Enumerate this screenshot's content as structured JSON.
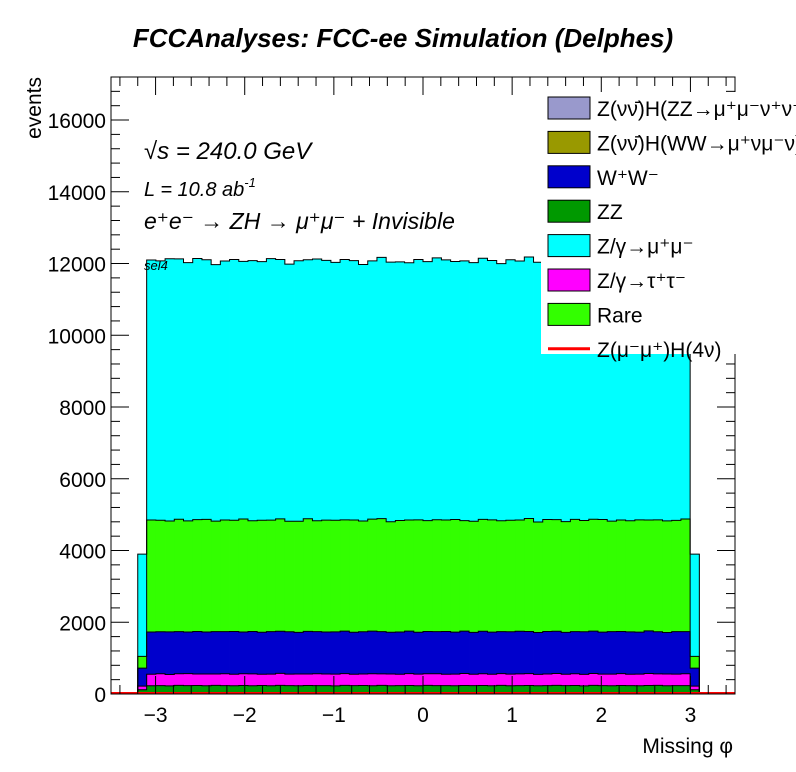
{
  "chart_data": {
    "type": "stacked-histogram",
    "title": "FCCAnalyses: FCC-ee Simulation (Delphes)",
    "xlabel": "Missing φ",
    "ylabel": "events",
    "xlim": [
      -3.5,
      3.5
    ],
    "ylim": [
      0,
      17200
    ],
    "x_ticks": [
      "−3",
      "−2",
      "−1",
      "0",
      "1",
      "2",
      "3"
    ],
    "y_ticks": [
      "0",
      "2000",
      "4000",
      "6000",
      "8000",
      "10000",
      "12000",
      "14000",
      "16000"
    ],
    "annotations": {
      "energy": "√s = 240.0 GeV",
      "lumi": "L = 10.8 ab",
      "lumi_exp": "-1",
      "process": "e⁺e⁻ → ZH → μ⁺μ⁻ + Invisible",
      "selection": "sel4"
    },
    "grid": false,
    "legend_position": "top-right",
    "bins": {
      "x_min": -3.2,
      "x_max": 3.2,
      "bulk_count": 60,
      "edge_bin_width": 0.1
    },
    "stack_order_bottom_to_top": [
      "ZZ",
      "Z/γ→τ⁺τ⁻",
      "W⁺W⁻",
      "Rare",
      "Z/γ→μ⁺μ⁻"
    ],
    "series": [
      {
        "name": "Z(νν̄)H(ZZ→μ⁺μ⁻ν⁺ν⁻)",
        "color": "#9999cc",
        "edge_value": 0,
        "values": [
          0
        ]
      },
      {
        "name": "Z(νν̄)H(WW→μ⁺νμ⁻ν)",
        "color": "#999900",
        "edge_value": 0,
        "values": [
          0
        ]
      },
      {
        "name": "W⁺W⁻",
        "color": "#0000cc",
        "edge_value": 500,
        "values": [
          1180,
          1170,
          1190,
          1175,
          1160,
          1185,
          1170,
          1180,
          1175,
          1190,
          1165,
          1180,
          1170,
          1185,
          1175,
          1180,
          1160,
          1190,
          1175,
          1170,
          1180,
          1185,
          1170,
          1175,
          1190,
          1180,
          1165,
          1175,
          1185,
          1170,
          1180,
          1175,
          1190,
          1170,
          1180,
          1165,
          1185,
          1175,
          1170,
          1180,
          1190,
          1175,
          1170,
          1185,
          1180,
          1165,
          1175,
          1190,
          1180,
          1170,
          1185,
          1175,
          1180,
          1170,
          1190,
          1175,
          1160,
          1185,
          1175,
          1180
        ]
      },
      {
        "name": "ZZ",
        "color": "#009900",
        "edge_value": 120,
        "values": [
          230,
          235,
          228,
          240,
          232,
          236,
          229,
          241,
          233,
          230,
          238,
          231,
          236,
          229,
          242,
          234,
          230,
          237,
          232,
          235,
          228,
          240,
          233,
          236,
          231,
          239,
          230,
          234,
          237,
          229,
          241,
          232,
          235,
          230,
          238,
          233,
          236,
          229,
          240,
          231,
          235,
          237,
          230,
          234,
          239,
          232,
          236,
          228,
          241,
          233,
          230,
          238,
          234,
          231,
          236,
          240,
          229,
          235,
          233,
          237
        ]
      },
      {
        "name": "Z/γ→μ⁺μ⁻",
        "color": "#00ffff",
        "edge_value": 2850,
        "values": [
          7250,
          7230,
          7310,
          7260,
          7200,
          7280,
          7240,
          7150,
          7220,
          7270,
          7180,
          7250,
          7210,
          7290,
          7230,
          7170,
          7260,
          7220,
          7300,
          7240,
          7190,
          7260,
          7230,
          7150,
          7200,
          7280,
          7240,
          7210,
          7170,
          7260,
          7220,
          7300,
          7250,
          7190,
          7240,
          7210,
          7280,
          7230,
          7170,
          7260,
          7220,
          7290,
          7240,
          7200,
          7250,
          7180,
          7260,
          7230,
          7210,
          7290,
          7240,
          7170,
          7250,
          7220,
          7280,
          7230,
          7200,
          7260,
          7240,
          7190
        ]
      },
      {
        "name": "Z/γ→τ⁺τ⁻",
        "color": "#ff00ff",
        "edge_value": 100,
        "values": [
          320,
          330,
          315,
          325,
          335,
          320,
          328,
          318,
          332,
          322,
          326,
          330,
          316,
          324,
          334,
          320,
          327,
          319,
          331,
          323,
          325,
          329,
          317,
          323,
          333,
          321,
          326,
          318,
          330,
          324,
          322,
          331,
          317,
          325,
          335,
          319,
          327,
          321,
          329,
          323,
          326,
          330,
          316,
          324,
          332,
          320,
          328,
          318,
          331,
          322,
          325,
          329,
          317,
          324,
          334,
          320,
          327,
          319,
          330,
          323
        ]
      },
      {
        "name": "Rare",
        "color": "#33ff00",
        "edge_value": 330,
        "values": [
          3120,
          3110,
          3090,
          3130,
          3100,
          3120,
          3140,
          3080,
          3110,
          3100,
          3150,
          3090,
          3120,
          3110,
          3130,
          3080,
          3100,
          3140,
          3090,
          3120,
          3110,
          3100,
          3130,
          3090,
          3120,
          3150,
          3080,
          3110,
          3100,
          3130,
          3090,
          3120,
          3110,
          3140,
          3080,
          3100,
          3120,
          3130,
          3090,
          3110,
          3100,
          3150,
          3080,
          3120,
          3110,
          3090,
          3130,
          3100,
          3120,
          3140,
          3080,
          3110,
          3100,
          3130,
          3090,
          3120,
          3110,
          3100,
          3140,
          3090
        ]
      },
      {
        "name": "Z(μ⁻μ⁺)H(4ν)",
        "color": "#ff0000",
        "style": "line",
        "edge_value": 0,
        "values": [
          0
        ]
      }
    ],
    "legend_entries": [
      {
        "label": "Z(νν̄)H(ZZ→μ⁺μ⁻ν⁺ν⁻)",
        "color": "#9999cc",
        "kind": "box"
      },
      {
        "label": "Z(νν̄)H(WW→μ⁺νμ⁻ν)",
        "color": "#999900",
        "kind": "box"
      },
      {
        "label": "W⁺W⁻",
        "color": "#0000cc",
        "kind": "box"
      },
      {
        "label": "ZZ",
        "color": "#009900",
        "kind": "box"
      },
      {
        "label": "Z/γ→μ⁺μ⁻",
        "color": "#00ffff",
        "kind": "box"
      },
      {
        "label": "Z/γ→τ⁺τ⁻",
        "color": "#ff00ff",
        "kind": "box"
      },
      {
        "label": "Rare",
        "color": "#33ff00",
        "kind": "box"
      },
      {
        "label": "Z(μ⁻μ⁺)H(4ν)",
        "color": "#ff0000",
        "kind": "line"
      }
    ]
  }
}
